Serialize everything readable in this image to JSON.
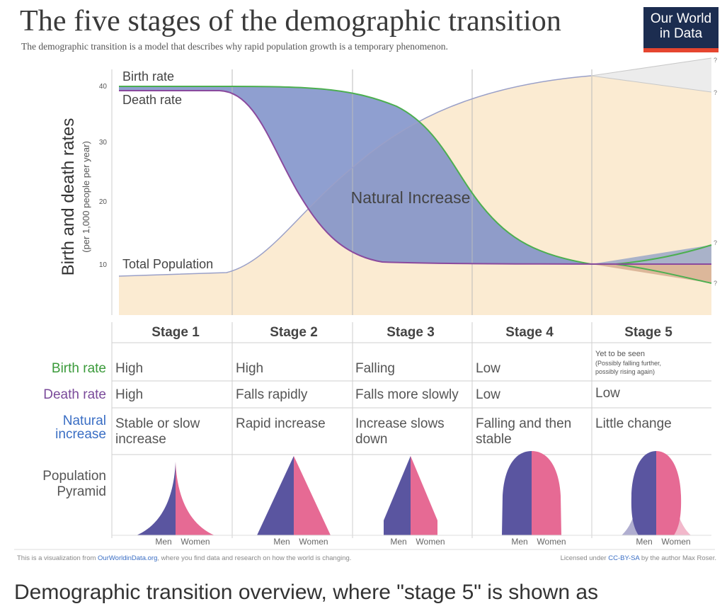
{
  "header": {
    "title": "The five stages of the demographic transition",
    "subtitle": "The demographic transition is a model that describes why rapid population growth is a temporary phenomenon.",
    "logo_line1": "Our World",
    "logo_line2": "in Data"
  },
  "chart": {
    "y_axis_title": "Birth and death rates",
    "y_axis_subtitle": "(per 1,000 people per year)",
    "y_ticks": [
      "40",
      "30",
      "20",
      "10"
    ],
    "birth_rate_label": "Birth rate",
    "death_rate_label": "Death rate",
    "total_population_label": "Total Population",
    "natural_increase_label": "Natural Increase",
    "uncertain_marker": "?"
  },
  "stages": [
    "Stage 1",
    "Stage 2",
    "Stage 3",
    "Stage 4",
    "Stage 5"
  ],
  "rows": {
    "birth_rate": {
      "label": "Birth rate",
      "values": [
        "High",
        "High",
        "Falling",
        "Low",
        ""
      ],
      "stage5_line1": "Yet to be seen",
      "stage5_line2": "(Possibly falling further,",
      "stage5_line3": "possibly rising again)"
    },
    "death_rate": {
      "label": "Death rate",
      "values": [
        "High",
        "Falls rapidly",
        "Falls more slowly",
        "Low",
        "Low"
      ]
    },
    "natural_increase": {
      "label_line1": "Natural",
      "label_line2": "increase",
      "values": [
        [
          "Stable or slow",
          "increase"
        ],
        [
          "Rapid increase",
          ""
        ],
        [
          "Increase slows",
          "down"
        ],
        [
          "Falling and then",
          "stable"
        ],
        [
          "Little change",
          ""
        ]
      ]
    },
    "pyramid": {
      "label_line1": "Population",
      "label_line2": "Pyramid",
      "men_label": "Men",
      "women_label": "Women"
    }
  },
  "footer": {
    "left_prefix": "This is a visualization from ",
    "left_link": "OurWorldinData.org",
    "left_suffix": ", where you find data and research on how the world is changing.",
    "right_prefix": "Licensed under ",
    "right_link": "CC-BY-SA",
    "right_suffix": " by the author Max Roser."
  },
  "caption": "Demographic transition overview, where \"stage 5\" is shown as",
  "colors": {
    "birth_line": "#4caf50",
    "death_line": "#8a4a9e",
    "natural_increase_fill": "#7b8ec8",
    "population_fill": "#fbebd2",
    "men": "#5a55a0",
    "women": "#e66a94",
    "label_green": "#3a9a3a",
    "label_purple": "#7a4a9a",
    "label_blue": "#3a6ec4",
    "link": "#3a6ec4"
  }
}
